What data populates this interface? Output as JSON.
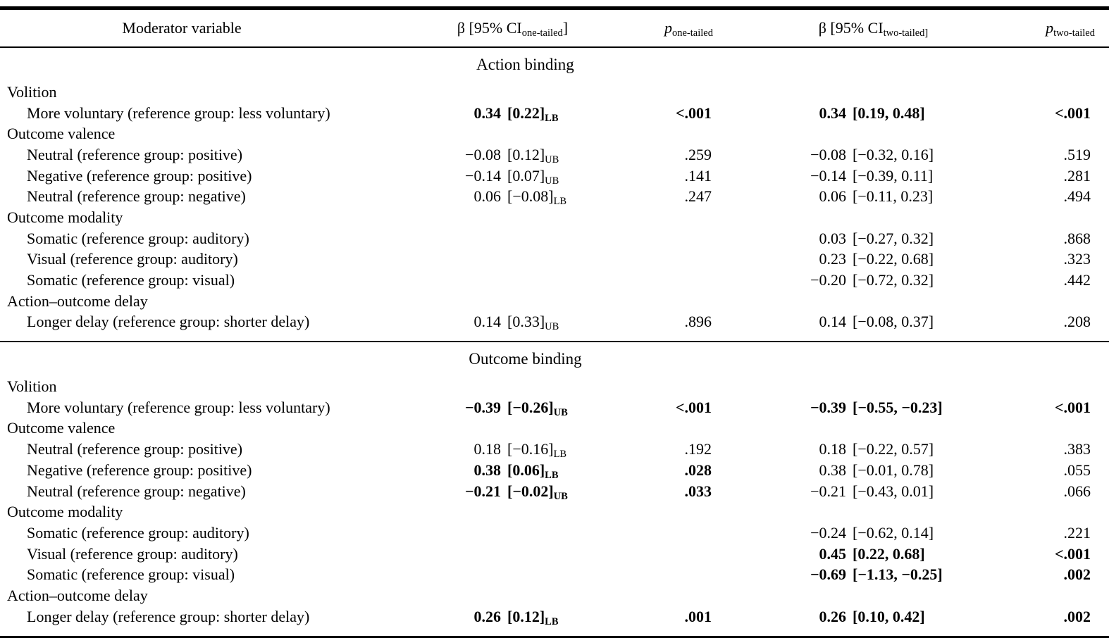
{
  "header": {
    "moderator": "Moderator variable",
    "beta_one": {
      "pre": "β [95% CI",
      "sub": "one-tailed",
      "post": "]"
    },
    "p_one": {
      "pre": "p",
      "sub": "one-tailed"
    },
    "beta_two": {
      "pre": "β [95% CI",
      "sub": "two-tailed]",
      "post": ""
    },
    "p_two": {
      "pre": "p",
      "sub": "two-tailed"
    }
  },
  "sections": [
    {
      "title": "Action binding",
      "rows": [
        {
          "type": "category",
          "label": "Volition"
        },
        {
          "type": "data",
          "label": "More voluntary (reference group: less voluntary)",
          "beta1": "0.34",
          "ci1": "[0.22]",
          "ci1_sub": "LB",
          "p1": "<.001",
          "bold1": true,
          "beta2": "0.34",
          "ci2": "[0.19, 0.48]",
          "p2": "<.001",
          "bold2": true
        },
        {
          "type": "category",
          "label": "Outcome valence"
        },
        {
          "type": "data",
          "label": "Neutral (reference group: positive)",
          "beta1": "−0.08",
          "ci1": "[0.12]",
          "ci1_sub": "UB",
          "p1": ".259",
          "bold1": false,
          "beta2": "−0.08",
          "ci2": "[−0.32, 0.16]",
          "p2": ".519",
          "bold2": false
        },
        {
          "type": "data",
          "label": "Negative (reference group: positive)",
          "beta1": "−0.14",
          "ci1": "[0.07]",
          "ci1_sub": "UB",
          "p1": ".141",
          "bold1": false,
          "beta2": "−0.14",
          "ci2": "[−0.39, 0.11]",
          "p2": ".281",
          "bold2": false
        },
        {
          "type": "data",
          "label": "Neutral (reference group: negative)",
          "beta1": "0.06",
          "ci1": "[−0.08]",
          "ci1_sub": "LB",
          "p1": ".247",
          "bold1": false,
          "beta2": "0.06",
          "ci2": "[−0.11, 0.23]",
          "p2": ".494",
          "bold2": false
        },
        {
          "type": "category",
          "label": "Outcome modality"
        },
        {
          "type": "data",
          "label": "Somatic (reference group: auditory)",
          "beta1": "",
          "ci1": "",
          "ci1_sub": "",
          "p1": "",
          "bold1": false,
          "beta2": "0.03",
          "ci2": "[−0.27, 0.32]",
          "p2": ".868",
          "bold2": false
        },
        {
          "type": "data",
          "label": "Visual (reference group: auditory)",
          "beta1": "",
          "ci1": "",
          "ci1_sub": "",
          "p1": "",
          "bold1": false,
          "beta2": "0.23",
          "ci2": "[−0.22, 0.68]",
          "p2": ".323",
          "bold2": false
        },
        {
          "type": "data",
          "label": "Somatic (reference group: visual)",
          "beta1": "",
          "ci1": "",
          "ci1_sub": "",
          "p1": "",
          "bold1": false,
          "beta2": "−0.20",
          "ci2": "[−0.72, 0.32]",
          "p2": ".442",
          "bold2": false
        },
        {
          "type": "category",
          "label": "Action–outcome delay"
        },
        {
          "type": "data",
          "label": "Longer delay (reference group: shorter delay)",
          "beta1": "0.14",
          "ci1": "[0.33]",
          "ci1_sub": "UB",
          "p1": ".896",
          "bold1": false,
          "beta2": "0.14",
          "ci2": "[−0.08, 0.37]",
          "p2": ".208",
          "bold2": false
        }
      ]
    },
    {
      "title": "Outcome binding",
      "rows": [
        {
          "type": "category",
          "label": "Volition"
        },
        {
          "type": "data",
          "label": "More voluntary (reference group: less voluntary)",
          "beta1": "−0.39",
          "ci1": "[−0.26]",
          "ci1_sub": "UB",
          "p1": "<.001",
          "bold1": true,
          "beta2": "−0.39",
          "ci2": "[−0.55, −0.23]",
          "p2": "<.001",
          "bold2": true
        },
        {
          "type": "category",
          "label": "Outcome valence"
        },
        {
          "type": "data",
          "label": "Neutral (reference group: positive)",
          "beta1": "0.18",
          "ci1": "[−0.16]",
          "ci1_sub": "LB",
          "p1": ".192",
          "bold1": false,
          "beta2": "0.18",
          "ci2": "[−0.22, 0.57]",
          "p2": ".383",
          "bold2": false
        },
        {
          "type": "data",
          "label": "Negative (reference group: positive)",
          "beta1": "0.38",
          "ci1": "[0.06]",
          "ci1_sub": "LB",
          "p1": ".028",
          "bold1": true,
          "beta2": "0.38",
          "ci2": "[−0.01, 0.78]",
          "p2": ".055",
          "bold2": false
        },
        {
          "type": "data",
          "label": "Neutral (reference group: negative)",
          "beta1": "−0.21",
          "ci1": "[−0.02]",
          "ci1_sub": "UB",
          "p1": ".033",
          "bold1": true,
          "beta2": "−0.21",
          "ci2": "[−0.43, 0.01]",
          "p2": ".066",
          "bold2": false
        },
        {
          "type": "category",
          "label": "Outcome modality"
        },
        {
          "type": "data",
          "label": "Somatic (reference group: auditory)",
          "beta1": "",
          "ci1": "",
          "ci1_sub": "",
          "p1": "",
          "bold1": false,
          "beta2": "−0.24",
          "ci2": "[−0.62, 0.14]",
          "p2": ".221",
          "bold2": false
        },
        {
          "type": "data",
          "label": "Visual (reference group: auditory)",
          "beta1": "",
          "ci1": "",
          "ci1_sub": "",
          "p1": "",
          "bold1": false,
          "beta2": "0.45",
          "ci2": "[0.22, 0.68]",
          "p2": "<.001",
          "bold2": true
        },
        {
          "type": "data",
          "label": "Somatic (reference group: visual)",
          "beta1": "",
          "ci1": "",
          "ci1_sub": "",
          "p1": "",
          "bold1": false,
          "beta2": "−0.69",
          "ci2": "[−1.13, −0.25]",
          "p2": ".002",
          "bold2": true
        },
        {
          "type": "category",
          "label": "Action–outcome delay"
        },
        {
          "type": "data",
          "label": "Longer delay (reference group: shorter delay)",
          "beta1": "0.26",
          "ci1": "[0.12]",
          "ci1_sub": "LB",
          "p1": ".001",
          "bold1": true,
          "beta2": "0.26",
          "ci2": "[0.10, 0.42]",
          "p2": ".002",
          "bold2": true
        }
      ]
    }
  ]
}
